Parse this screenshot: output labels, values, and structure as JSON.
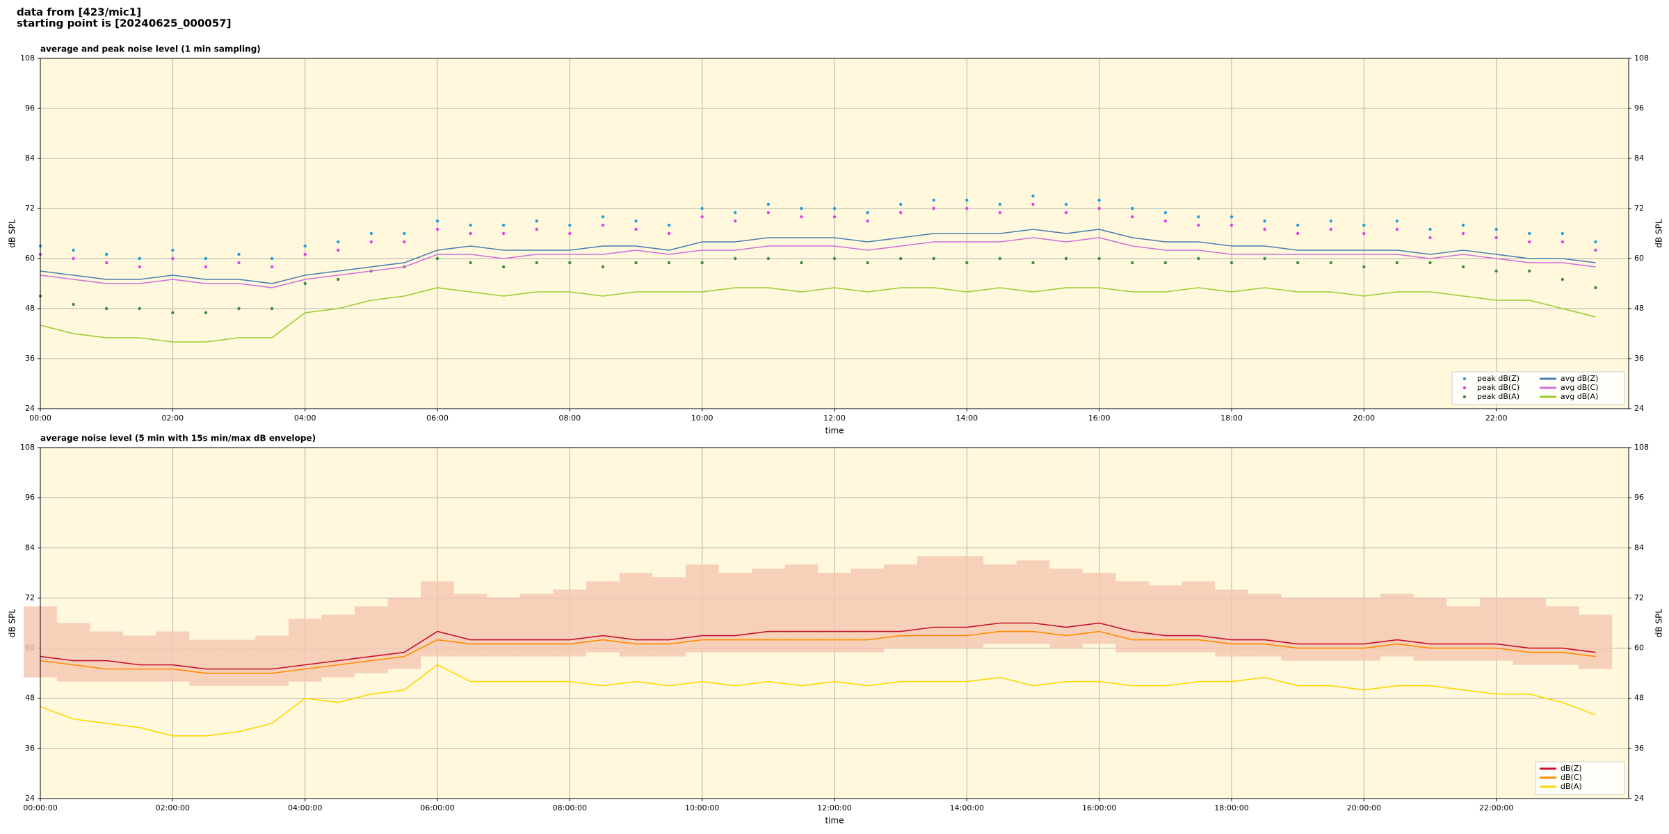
{
  "header": {
    "lines": [
      "data from [423/mic1]",
      "starting point is [20240625_000057]"
    ]
  },
  "chart_data": [
    {
      "type": "line",
      "title": "average and peak noise level (1 min sampling)",
      "xlabel": "time",
      "ylabel": "dB SPL",
      "background": "#fff8dc",
      "grid": true,
      "legend": "lower right",
      "legend_columns": 2,
      "xlim": [
        0,
        24
      ],
      "ylim": [
        24,
        108
      ],
      "yticks": [
        24,
        36,
        48,
        60,
        72,
        84,
        96,
        108
      ],
      "xticks": [
        {
          "value": 0,
          "label": "00:00"
        },
        {
          "value": 2,
          "label": "02:00"
        },
        {
          "value": 4,
          "label": "04:00"
        },
        {
          "value": 6,
          "label": "06:00"
        },
        {
          "value": 8,
          "label": "08:00"
        },
        {
          "value": 10,
          "label": "10:00"
        },
        {
          "value": 12,
          "label": "12:00"
        },
        {
          "value": 14,
          "label": "14:00"
        },
        {
          "value": 16,
          "label": "16:00"
        },
        {
          "value": 18,
          "label": "18:00"
        },
        {
          "value": 20,
          "label": "20:00"
        },
        {
          "value": 22,
          "label": "22:00"
        }
      ],
      "x": [
        0,
        0.5,
        1,
        1.5,
        2,
        2.5,
        3,
        3.5,
        4,
        4.5,
        5,
        5.5,
        6,
        6.5,
        7,
        7.5,
        8,
        8.5,
        9,
        9.5,
        10,
        10.5,
        11,
        11.5,
        12,
        12.5,
        13,
        13.5,
        14,
        14.5,
        15,
        15.5,
        16,
        16.5,
        17,
        17.5,
        18,
        18.5,
        19,
        19.5,
        20,
        20.5,
        21,
        21.5,
        22,
        22.5,
        23,
        23.5
      ],
      "series": [
        {
          "name": "peak dB(Z)",
          "kind": "scatter",
          "color": "#1f9fd8",
          "values": [
            63,
            62,
            61,
            60,
            62,
            60,
            61,
            60,
            63,
            64,
            66,
            66,
            69,
            68,
            68,
            69,
            68,
            70,
            69,
            68,
            72,
            71,
            73,
            72,
            72,
            71,
            73,
            74,
            74,
            73,
            75,
            73,
            74,
            72,
            71,
            70,
            70,
            69,
            68,
            69,
            68,
            69,
            67,
            68,
            67,
            66,
            66,
            64
          ]
        },
        {
          "name": "peak dB(C)",
          "kind": "scatter",
          "color": "#e040e0",
          "values": [
            61,
            60,
            59,
            58,
            60,
            58,
            59,
            58,
            61,
            62,
            64,
            64,
            67,
            66,
            66,
            67,
            66,
            68,
            67,
            66,
            70,
            69,
            71,
            70,
            70,
            69,
            71,
            72,
            72,
            71,
            73,
            71,
            72,
            70,
            69,
            68,
            68,
            67,
            66,
            67,
            66,
            67,
            65,
            66,
            65,
            64,
            64,
            62
          ]
        },
        {
          "name": "peak dB(A)",
          "kind": "scatter",
          "color": "#3c8c3c",
          "values": [
            51,
            49,
            48,
            48,
            47,
            47,
            48,
            48,
            54,
            55,
            57,
            58,
            60,
            59,
            58,
            59,
            59,
            58,
            59,
            59,
            59,
            60,
            60,
            59,
            60,
            59,
            60,
            60,
            59,
            60,
            59,
            60,
            60,
            59,
            59,
            60,
            59,
            60,
            59,
            59,
            58,
            59,
            59,
            58,
            57,
            57,
            55,
            53
          ]
        },
        {
          "name": "avg dB(Z)",
          "kind": "line",
          "color": "#4a7fb0",
          "values": [
            57,
            56,
            55,
            55,
            56,
            55,
            55,
            54,
            56,
            57,
            58,
            59,
            62,
            63,
            62,
            62,
            62,
            63,
            63,
            62,
            64,
            64,
            65,
            65,
            65,
            64,
            65,
            66,
            66,
            66,
            67,
            66,
            67,
            65,
            64,
            64,
            63,
            63,
            62,
            62,
            62,
            62,
            61,
            62,
            61,
            60,
            60,
            59
          ]
        },
        {
          "name": "avg dB(C)",
          "kind": "line",
          "color": "#d070d8",
          "values": [
            56,
            55,
            54,
            54,
            55,
            54,
            54,
            53,
            55,
            56,
            57,
            58,
            61,
            61,
            60,
            61,
            61,
            61,
            62,
            61,
            62,
            62,
            63,
            63,
            63,
            62,
            63,
            64,
            64,
            64,
            65,
            64,
            65,
            63,
            62,
            62,
            61,
            61,
            61,
            61,
            61,
            61,
            60,
            61,
            60,
            59,
            59,
            58
          ]
        },
        {
          "name": "avg dB(A)",
          "kind": "line",
          "color": "#9acd32",
          "values": [
            44,
            42,
            41,
            41,
            40,
            40,
            41,
            41,
            47,
            48,
            50,
            51,
            53,
            52,
            51,
            52,
            52,
            51,
            52,
            52,
            52,
            53,
            53,
            52,
            53,
            52,
            53,
            53,
            52,
            53,
            52,
            53,
            53,
            52,
            52,
            53,
            52,
            53,
            52,
            52,
            51,
            52,
            52,
            51,
            50,
            50,
            48,
            46
          ]
        }
      ]
    },
    {
      "type": "line",
      "title": "average noise level (5 min with 15s min/max dB envelope)",
      "xlabel": "time",
      "ylabel": "dB SPL",
      "background": "#fff8dc",
      "grid": true,
      "legend": "lower right",
      "legend_columns": 1,
      "xlim": [
        0,
        24
      ],
      "ylim": [
        24,
        108
      ],
      "yticks": [
        24,
        36,
        48,
        60,
        72,
        84,
        96,
        108
      ],
      "xticks": [
        {
          "value": 0,
          "label": "00:00:00"
        },
        {
          "value": 2,
          "label": "02:00:00"
        },
        {
          "value": 4,
          "label": "04:00:00"
        },
        {
          "value": 6,
          "label": "06:00:00"
        },
        {
          "value": 8,
          "label": "08:00:00"
        },
        {
          "value": 10,
          "label": "10:00:00"
        },
        {
          "value": 12,
          "label": "12:00:00"
        },
        {
          "value": 14,
          "label": "14:00:00"
        },
        {
          "value": 16,
          "label": "16:00:00"
        },
        {
          "value": 18,
          "label": "18:00:00"
        },
        {
          "value": 20,
          "label": "20:00:00"
        },
        {
          "value": 22,
          "label": "22:00:00"
        }
      ],
      "x": [
        0,
        0.5,
        1,
        1.5,
        2,
        2.5,
        3,
        3.5,
        4,
        4.5,
        5,
        5.5,
        6,
        6.5,
        7,
        7.5,
        8,
        8.5,
        9,
        9.5,
        10,
        10.5,
        11,
        11.5,
        12,
        12.5,
        13,
        13.5,
        14,
        14.5,
        15,
        15.5,
        16,
        16.5,
        17,
        17.5,
        18,
        18.5,
        19,
        19.5,
        20,
        20.5,
        21,
        21.5,
        22,
        22.5,
        23,
        23.5
      ],
      "envelope": {
        "color": "#f5c6b0",
        "low": [
          53,
          52,
          52,
          52,
          52,
          51,
          51,
          51,
          52,
          53,
          54,
          55,
          58,
          58,
          58,
          58,
          58,
          59,
          58,
          58,
          59,
          59,
          59,
          59,
          59,
          59,
          60,
          60,
          60,
          61,
          61,
          60,
          61,
          59,
          59,
          59,
          58,
          58,
          57,
          57,
          57,
          58,
          57,
          57,
          57,
          56,
          56,
          55
        ],
        "high": [
          70,
          66,
          64,
          63,
          64,
          62,
          62,
          63,
          67,
          68,
          70,
          72,
          76,
          73,
          72,
          73,
          74,
          76,
          78,
          77,
          80,
          78,
          79,
          80,
          78,
          79,
          80,
          82,
          82,
          80,
          81,
          79,
          78,
          76,
          75,
          76,
          74,
          73,
          72,
          72,
          72,
          73,
          72,
          70,
          72,
          72,
          70,
          68
        ]
      },
      "series": [
        {
          "name": "dB(Z)",
          "kind": "line",
          "color": "#c8102e",
          "values": [
            58,
            57,
            57,
            56,
            56,
            55,
            55,
            55,
            56,
            57,
            58,
            59,
            64,
            62,
            62,
            62,
            62,
            63,
            62,
            62,
            63,
            63,
            64,
            64,
            64,
            64,
            64,
            65,
            65,
            66,
            66,
            65,
            66,
            64,
            63,
            63,
            62,
            62,
            61,
            61,
            61,
            62,
            61,
            61,
            61,
            60,
            60,
            59
          ]
        },
        {
          "name": "dB(C)",
          "kind": "line",
          "color": "#ff8c00",
          "values": [
            57,
            56,
            55,
            55,
            55,
            54,
            54,
            54,
            55,
            56,
            57,
            58,
            62,
            61,
            61,
            61,
            61,
            62,
            61,
            61,
            62,
            62,
            62,
            62,
            62,
            62,
            63,
            63,
            63,
            64,
            64,
            63,
            64,
            62,
            62,
            62,
            61,
            61,
            60,
            60,
            60,
            61,
            60,
            60,
            60,
            59,
            59,
            58
          ]
        },
        {
          "name": "dB(A)",
          "kind": "line",
          "color": "#ffd700",
          "values": [
            46,
            43,
            42,
            41,
            39,
            39,
            40,
            42,
            48,
            47,
            49,
            50,
            56,
            52,
            52,
            52,
            52,
            51,
            52,
            51,
            52,
            51,
            52,
            51,
            52,
            51,
            52,
            52,
            52,
            53,
            51,
            52,
            52,
            51,
            51,
            52,
            52,
            53,
            51,
            51,
            50,
            51,
            51,
            50,
            49,
            49,
            47,
            44
          ]
        }
      ]
    }
  ]
}
